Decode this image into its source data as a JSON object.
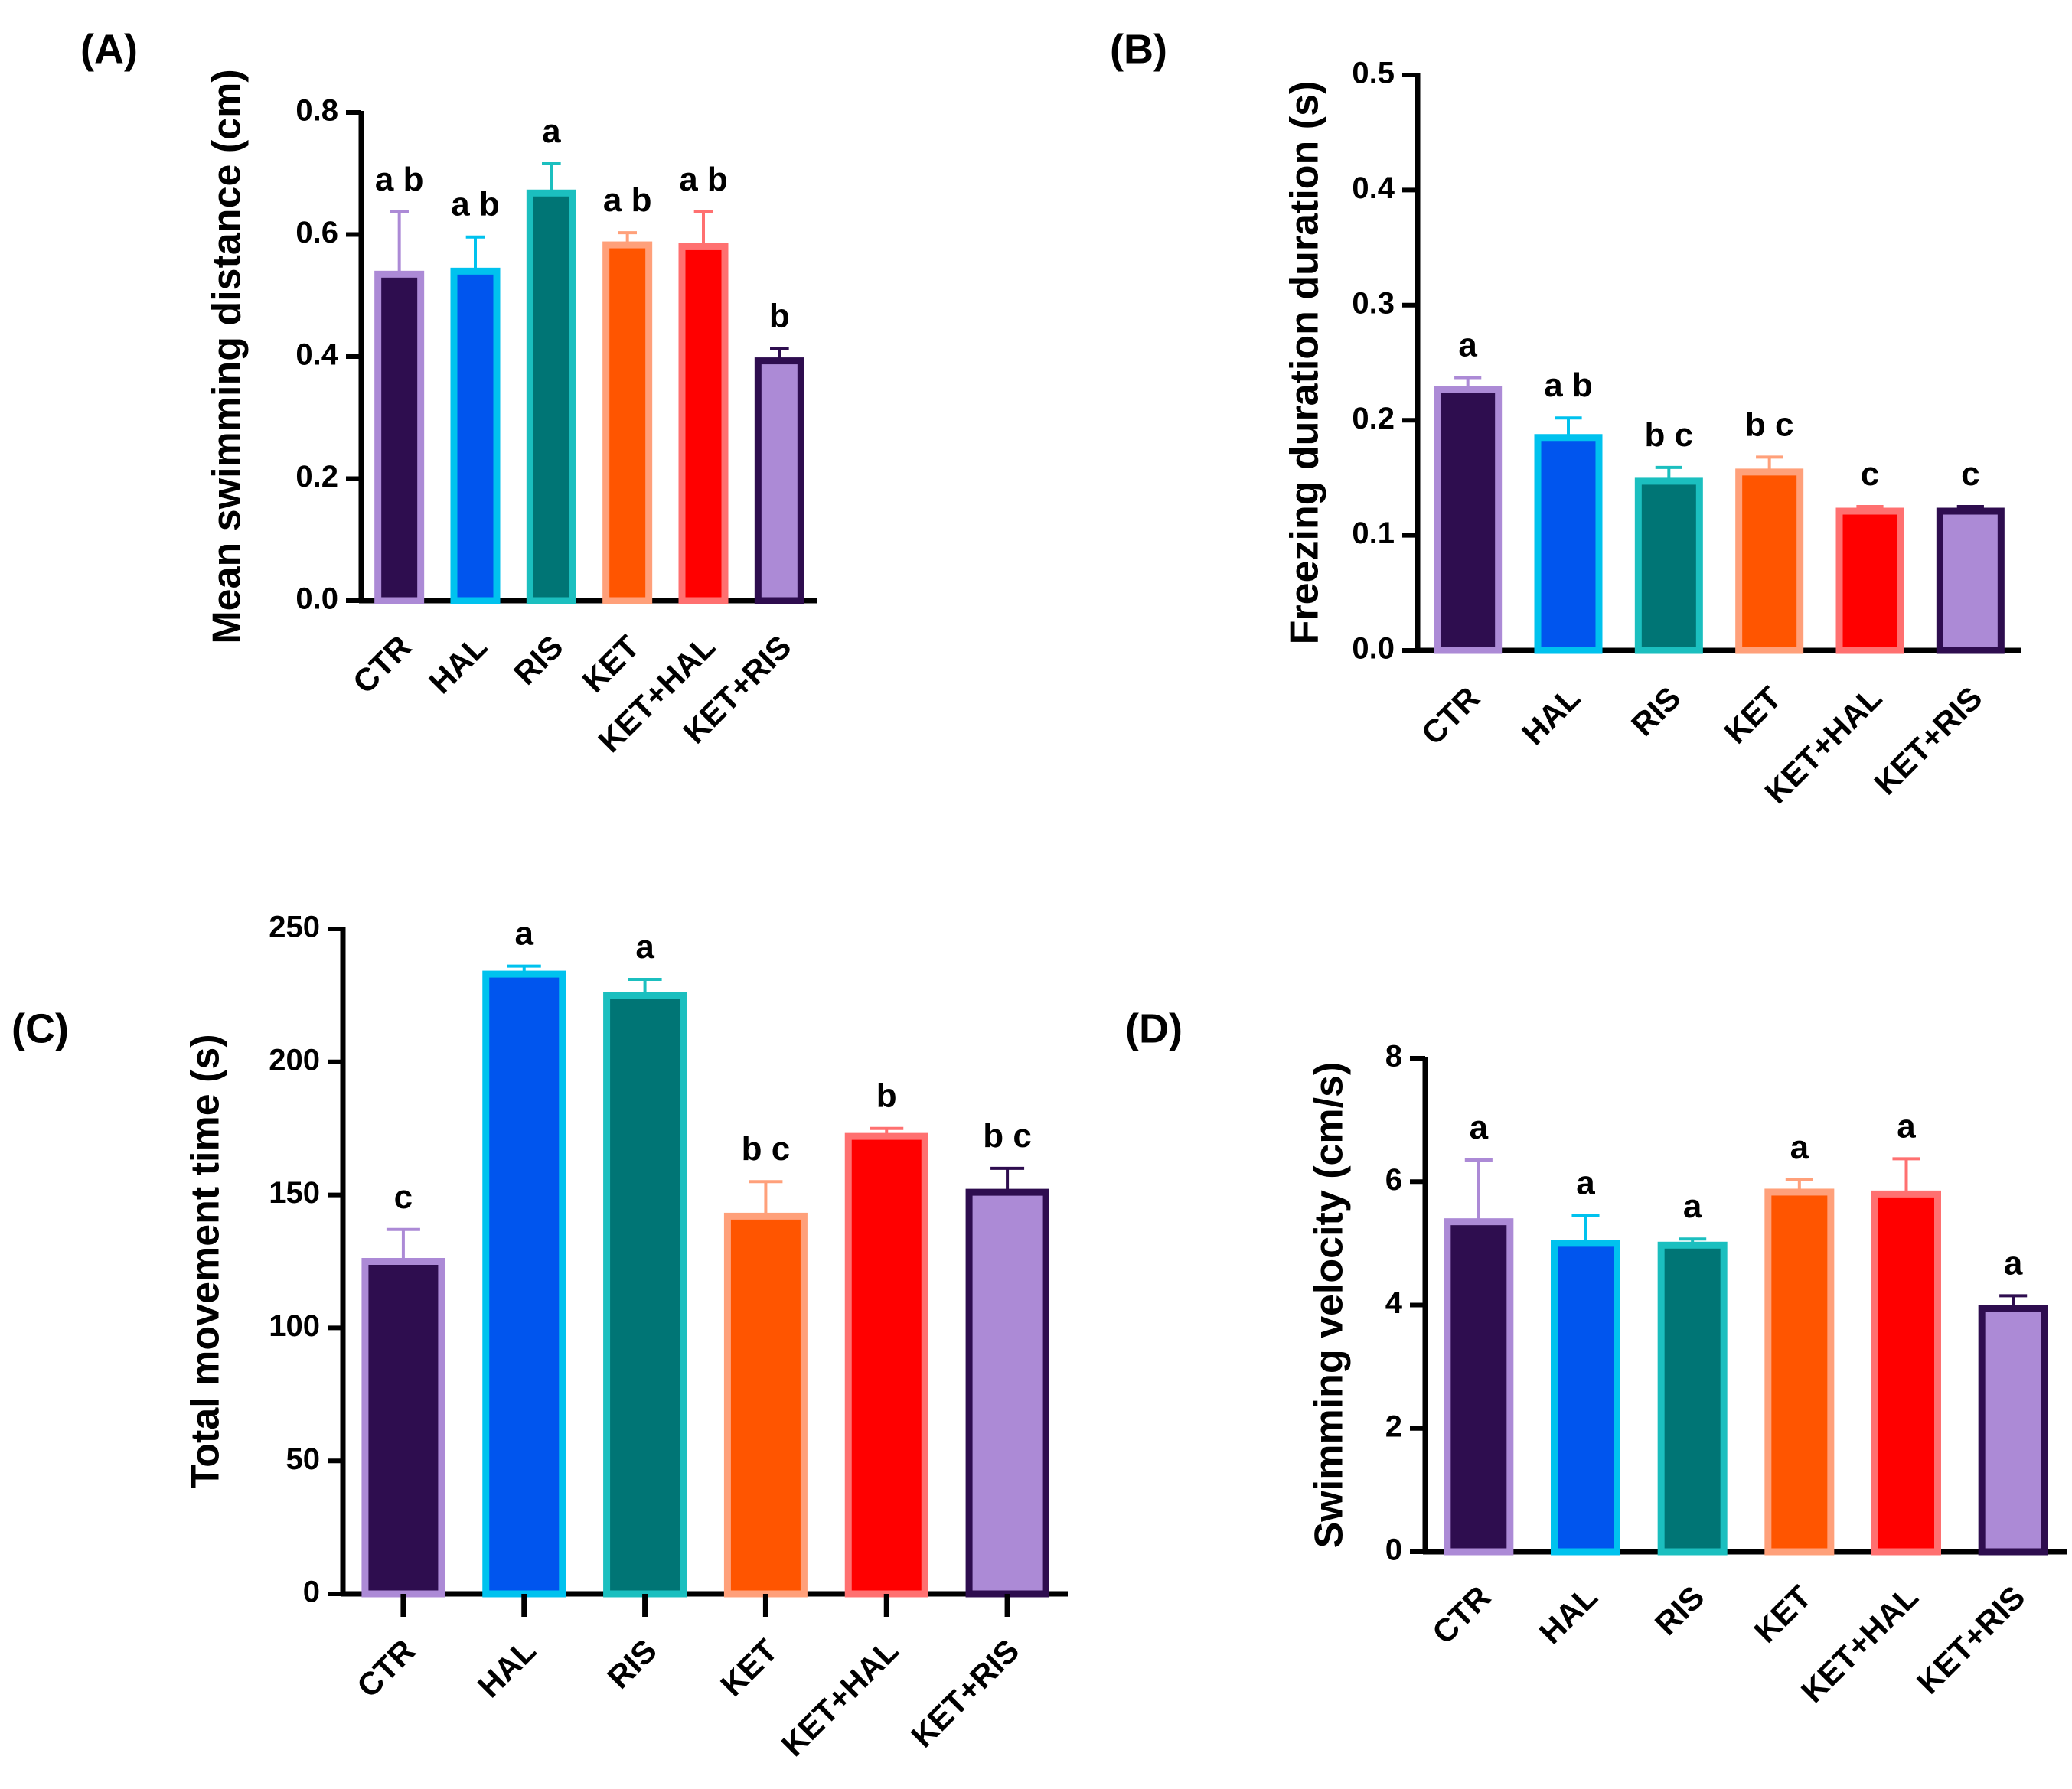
{
  "chart_data": [
    {
      "id": "A",
      "panel_label": "(A)",
      "type": "bar",
      "title": "",
      "xlabel": "",
      "ylabel": "Mean swimming distance (cm)",
      "ylim": [
        0,
        0.8
      ],
      "yticks": [
        0.0,
        0.2,
        0.4,
        0.6,
        0.8
      ],
      "ytick_labels": [
        "0.0",
        "0.2",
        "0.4",
        "0.6",
        "0.8"
      ],
      "categories": [
        "CTR",
        "HAL",
        "RIS",
        "KET",
        "KET+HAL",
        "KET+RIS"
      ],
      "values": [
        0.535,
        0.54,
        0.668,
        0.583,
        0.58,
        0.393
      ],
      "errors": [
        0.102,
        0.056,
        0.048,
        0.02,
        0.057,
        0.02
      ],
      "significance": [
        "a b",
        "a b",
        "a",
        "a b",
        "a b",
        "b"
      ],
      "fill_colors": [
        "#2e0d4f",
        "#0055ee",
        "#007575",
        "#ff5500",
        "#ff0000",
        "#ac8ad6"
      ],
      "edge_colors": [
        "#ac8ad6",
        "#00c2ee",
        "#1bbfbf",
        "#ffa07a",
        "#ff7070",
        "#2e0d4f"
      ],
      "grid": false
    },
    {
      "id": "B",
      "panel_label": "(B)",
      "type": "bar",
      "title": "",
      "xlabel": "",
      "ylabel": "Freezing duration duration (s)",
      "ylim": [
        0,
        0.5
      ],
      "yticks": [
        0.0,
        0.1,
        0.2,
        0.3,
        0.4,
        0.5
      ],
      "ytick_labels": [
        "0.0",
        "0.1",
        "0.2",
        "0.3",
        "0.4",
        "0.5"
      ],
      "categories": [
        "CTR",
        "HAL",
        "RIS",
        "KET",
        "KET+HAL",
        "KET+RIS"
      ],
      "values": [
        0.227,
        0.185,
        0.147,
        0.155,
        0.121,
        0.121
      ],
      "errors": [
        0.01,
        0.017,
        0.012,
        0.013,
        0.004,
        0.004
      ],
      "significance": [
        "a",
        "a b",
        "b c",
        "b c",
        "c",
        "c"
      ],
      "fill_colors": [
        "#2e0d4f",
        "#0055ee",
        "#007575",
        "#ff5500",
        "#ff0000",
        "#ac8ad6"
      ],
      "edge_colors": [
        "#ac8ad6",
        "#00c2ee",
        "#1bbfbf",
        "#ffa07a",
        "#ff7070",
        "#2e0d4f"
      ],
      "grid": false
    },
    {
      "id": "C",
      "panel_label": "(C)",
      "type": "bar",
      "title": "",
      "xlabel": "",
      "ylabel": "Total movement time (s)",
      "ylim": [
        0,
        250
      ],
      "yticks": [
        0,
        50,
        100,
        150,
        200,
        250
      ],
      "ytick_labels": [
        "0",
        "50",
        "100",
        "150",
        "200",
        "250"
      ],
      "categories": [
        "CTR",
        "HAL",
        "RIS",
        "KET",
        "KET+HAL",
        "KET+RIS"
      ],
      "values": [
        125,
        233,
        225,
        142,
        172,
        151
      ],
      "errors": [
        12,
        3,
        6,
        13,
        3,
        9
      ],
      "significance": [
        "c",
        "a",
        "a",
        "b c",
        "b",
        "b c"
      ],
      "fill_colors": [
        "#2e0d4f",
        "#0055ee",
        "#007575",
        "#ff5500",
        "#ff0000",
        "#ac8ad6"
      ],
      "edge_colors": [
        "#ac8ad6",
        "#00c2ee",
        "#1bbfbf",
        "#ffa07a",
        "#ff7070",
        "#2e0d4f"
      ],
      "grid": false
    },
    {
      "id": "D",
      "panel_label": "(D)",
      "type": "bar",
      "title": "",
      "xlabel": "",
      "ylabel": "Swimming velocity (cm/s)",
      "ylim": [
        0,
        8
      ],
      "yticks": [
        0,
        2,
        4,
        6,
        8
      ],
      "ytick_labels": [
        "0",
        "2",
        "4",
        "6",
        "8"
      ],
      "categories": [
        "CTR",
        "HAL",
        "RIS",
        "KET",
        "KET+HAL",
        "KET+RIS"
      ],
      "values": [
        5.35,
        5.0,
        4.97,
        5.83,
        5.8,
        3.95
      ],
      "errors": [
        1.0,
        0.45,
        0.1,
        0.2,
        0.57,
        0.2
      ],
      "significance": [
        "a",
        "a",
        "a",
        "a",
        "a",
        "a"
      ],
      "fill_colors": [
        "#2e0d4f",
        "#0055ee",
        "#007575",
        "#ff5500",
        "#ff0000",
        "#ac8ad6"
      ],
      "edge_colors": [
        "#ac8ad6",
        "#00c2ee",
        "#1bbfbf",
        "#ffa07a",
        "#ff7070",
        "#2e0d4f"
      ],
      "grid": false
    }
  ]
}
